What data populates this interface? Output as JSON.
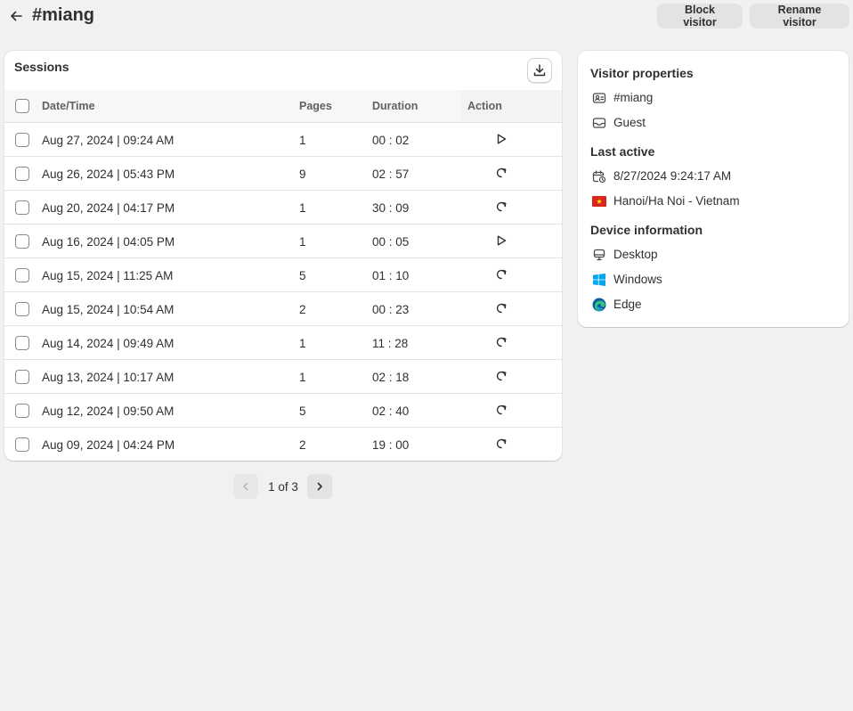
{
  "header": {
    "title": "#miang",
    "block_label": "Block visitor",
    "rename_label": "Rename visitor"
  },
  "sessions": {
    "title": "Sessions",
    "columns": [
      "Date/Time",
      "Pages",
      "Duration",
      "Action"
    ],
    "rows": [
      {
        "datetime": "Aug 27, 2024 | 09:24 AM",
        "pages": "1",
        "duration": "00 : 02",
        "action": "play-icon"
      },
      {
        "datetime": "Aug 26, 2024 | 05:43 PM",
        "pages": "9",
        "duration": "02 : 57",
        "action": "replay-icon"
      },
      {
        "datetime": "Aug 20, 2024 | 04:17 PM",
        "pages": "1",
        "duration": "30 : 09",
        "action": "replay-icon"
      },
      {
        "datetime": "Aug 16, 2024 | 04:05 PM",
        "pages": "1",
        "duration": "00 : 05",
        "action": "play-icon"
      },
      {
        "datetime": "Aug 15, 2024 | 11:25 AM",
        "pages": "5",
        "duration": "01 : 10",
        "action": "replay-icon"
      },
      {
        "datetime": "Aug 15, 2024 | 10:54 AM",
        "pages": "2",
        "duration": "00 : 23",
        "action": "replay-icon"
      },
      {
        "datetime": "Aug 14, 2024 | 09:49 AM",
        "pages": "1",
        "duration": "11 : 28",
        "action": "replay-icon"
      },
      {
        "datetime": "Aug 13, 2024 | 10:17 AM",
        "pages": "1",
        "duration": "02 : 18",
        "action": "replay-icon"
      },
      {
        "datetime": "Aug 12, 2024 | 09:50 AM",
        "pages": "5",
        "duration": "02 : 40",
        "action": "replay-icon"
      },
      {
        "datetime": "Aug 09, 2024 | 04:24 PM",
        "pages": "2",
        "duration": "19 : 00",
        "action": "replay-icon"
      }
    ]
  },
  "pagination": {
    "label": "1 of 3"
  },
  "visitor": {
    "properties_title": "Visitor properties",
    "id": "#miang",
    "type": "Guest",
    "last_active_title": "Last active",
    "last_active": "8/27/2024 9:24:17 AM",
    "location": "Hanoi/Ha Noi - Vietnam",
    "device_title": "Device information",
    "device": "Desktop",
    "os": "Windows",
    "browser": "Edge"
  },
  "colors": {
    "background": "#f1f1f1",
    "flag_red": "#da251d",
    "flag_yellow": "#ffff00",
    "windows_blue": "#00a4ef",
    "edge_blue": "#0c59a4",
    "edge_teal": "#33c481"
  }
}
